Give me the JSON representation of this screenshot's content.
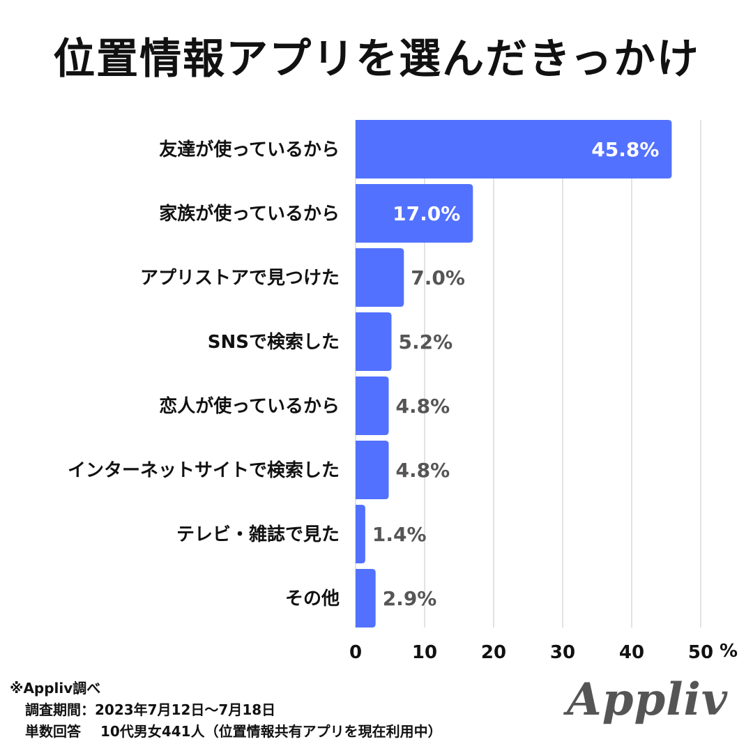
{
  "title": "位置情報アプリを選んだきっかけ",
  "chart_data": {
    "type": "bar",
    "orientation": "horizontal",
    "title": "位置情報アプリを選んだきっかけ",
    "categories": [
      "友達が使っているから",
      "家族が使っているから",
      "アプリストアで見つけた",
      "SNSで検索した",
      "恋人が使っているから",
      "インターネットサイトで検索した",
      "テレビ・雑誌で見た",
      "その他"
    ],
    "values": [
      45.8,
      17.0,
      7.0,
      5.2,
      4.8,
      4.8,
      1.4,
      2.9
    ],
    "value_labels": [
      "45.8%",
      "17.0%",
      "7.0%",
      "5.2%",
      "4.8%",
      "4.8%",
      "1.4%",
      "2.9%"
    ],
    "x_ticks": [
      "0",
      "10",
      "20",
      "30",
      "40",
      "50"
    ],
    "x_unit": "%",
    "xlim": [
      0,
      50
    ],
    "grid": true,
    "bar_color": "#5271ff"
  },
  "notes": {
    "line1": "※Appliv調べ",
    "line2": "調査期間：2023年7月12日〜7月18日",
    "line3_label": "単数回答",
    "line3_value": "10代男女441人（位置情報共有アプリを現在利用中）"
  },
  "logo_text": "Appliv"
}
